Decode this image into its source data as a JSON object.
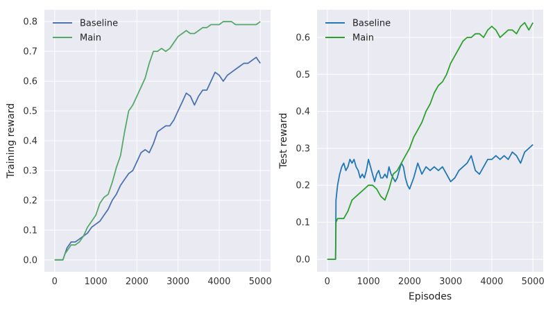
{
  "chart_data": [
    {
      "type": "line",
      "title": "",
      "xlabel": "",
      "ylabel": "Training reward",
      "xlim": [
        -250,
        5250
      ],
      "ylim": [
        -0.04,
        0.84
      ],
      "xticks": [
        0,
        1000,
        2000,
        3000,
        4000,
        5000
      ],
      "yticks": [
        "0.0",
        "0.1",
        "0.2",
        "0.3",
        "0.4",
        "0.5",
        "0.6",
        "0.7",
        "0.8"
      ],
      "grid": true,
      "legend_position": "top-left",
      "series": [
        {
          "name": "Baseline",
          "color": "#4c72b0",
          "x": [
            0,
            200,
            250,
            300,
            400,
            500,
            600,
            700,
            800,
            900,
            1000,
            1100,
            1200,
            1300,
            1400,
            1500,
            1600,
            1700,
            1800,
            1900,
            2000,
            2100,
            2200,
            2300,
            2400,
            2500,
            2600,
            2700,
            2800,
            2900,
            3000,
            3100,
            3200,
            3300,
            3400,
            3500,
            3600,
            3700,
            3800,
            3900,
            4000,
            4100,
            4200,
            4300,
            4400,
            4500,
            4600,
            4700,
            4800,
            4900,
            5000
          ],
          "y": [
            0.0,
            0.0,
            0.02,
            0.04,
            0.06,
            0.06,
            0.07,
            0.08,
            0.09,
            0.11,
            0.12,
            0.13,
            0.15,
            0.17,
            0.2,
            0.22,
            0.25,
            0.27,
            0.29,
            0.3,
            0.33,
            0.36,
            0.37,
            0.36,
            0.39,
            0.43,
            0.44,
            0.45,
            0.45,
            0.47,
            0.5,
            0.53,
            0.56,
            0.55,
            0.52,
            0.55,
            0.57,
            0.57,
            0.6,
            0.63,
            0.62,
            0.6,
            0.62,
            0.63,
            0.64,
            0.65,
            0.66,
            0.66,
            0.67,
            0.68,
            0.66
          ]
        },
        {
          "name": "Main",
          "color": "#55a868",
          "x": [
            0,
            200,
            250,
            300,
            400,
            500,
            600,
            700,
            800,
            900,
            1000,
            1100,
            1200,
            1300,
            1400,
            1500,
            1600,
            1700,
            1800,
            1900,
            2000,
            2100,
            2200,
            2300,
            2400,
            2500,
            2600,
            2700,
            2800,
            2900,
            3000,
            3100,
            3200,
            3300,
            3400,
            3500,
            3600,
            3700,
            3800,
            3900,
            4000,
            4100,
            4200,
            4300,
            4400,
            4500,
            4600,
            4700,
            4800,
            4900,
            5000
          ],
          "y": [
            0.0,
            0.0,
            0.02,
            0.03,
            0.05,
            0.05,
            0.06,
            0.08,
            0.11,
            0.13,
            0.15,
            0.19,
            0.21,
            0.22,
            0.26,
            0.31,
            0.35,
            0.43,
            0.5,
            0.52,
            0.55,
            0.58,
            0.61,
            0.66,
            0.7,
            0.7,
            0.71,
            0.7,
            0.71,
            0.73,
            0.75,
            0.76,
            0.77,
            0.76,
            0.76,
            0.77,
            0.78,
            0.78,
            0.79,
            0.79,
            0.79,
            0.8,
            0.8,
            0.8,
            0.79,
            0.79,
            0.79,
            0.79,
            0.79,
            0.79,
            0.8
          ]
        }
      ]
    },
    {
      "type": "line",
      "title": "",
      "xlabel": "Episodes",
      "ylabel": "Test reward",
      "xlim": [
        -250,
        5250
      ],
      "ylim": [
        -0.034,
        0.675
      ],
      "xticks": [
        0,
        1000,
        2000,
        3000,
        4000,
        5000
      ],
      "yticks": [
        "0.0",
        "0.1",
        "0.2",
        "0.3",
        "0.4",
        "0.5",
        "0.6"
      ],
      "grid": true,
      "legend_position": "top-left",
      "series": [
        {
          "name": "Baseline",
          "color": "#1f77b4",
          "x": [
            0,
            200,
            210,
            250,
            300,
            350,
            400,
            450,
            500,
            550,
            600,
            650,
            700,
            750,
            800,
            850,
            900,
            950,
            1000,
            1050,
            1100,
            1150,
            1200,
            1250,
            1300,
            1350,
            1400,
            1450,
            1500,
            1550,
            1600,
            1650,
            1700,
            1750,
            1800,
            1850,
            1900,
            1950,
            2000,
            2100,
            2200,
            2300,
            2400,
            2500,
            2600,
            2700,
            2800,
            2900,
            3000,
            3100,
            3200,
            3300,
            3400,
            3500,
            3600,
            3700,
            3800,
            3900,
            4000,
            4100,
            4200,
            4300,
            4400,
            4500,
            4600,
            4700,
            4800,
            4900,
            5000
          ],
          "y": [
            0.0,
            0.0,
            0.16,
            0.2,
            0.23,
            0.25,
            0.26,
            0.24,
            0.25,
            0.27,
            0.26,
            0.27,
            0.25,
            0.24,
            0.22,
            0.23,
            0.22,
            0.24,
            0.27,
            0.25,
            0.23,
            0.21,
            0.23,
            0.24,
            0.22,
            0.22,
            0.23,
            0.22,
            0.25,
            0.23,
            0.22,
            0.21,
            0.22,
            0.24,
            0.26,
            0.25,
            0.22,
            0.2,
            0.19,
            0.22,
            0.26,
            0.23,
            0.25,
            0.24,
            0.25,
            0.24,
            0.25,
            0.23,
            0.21,
            0.22,
            0.24,
            0.25,
            0.26,
            0.28,
            0.24,
            0.23,
            0.25,
            0.27,
            0.27,
            0.28,
            0.27,
            0.28,
            0.27,
            0.29,
            0.28,
            0.26,
            0.29,
            0.3,
            0.31
          ]
        },
        {
          "name": "Main",
          "color": "#2ca02c",
          "x": [
            0,
            200,
            210,
            250,
            300,
            400,
            500,
            600,
            700,
            800,
            900,
            1000,
            1100,
            1200,
            1300,
            1400,
            1500,
            1600,
            1700,
            1800,
            1900,
            2000,
            2100,
            2200,
            2300,
            2400,
            2500,
            2600,
            2700,
            2800,
            2900,
            3000,
            3100,
            3200,
            3300,
            3400,
            3500,
            3600,
            3700,
            3800,
            3900,
            4000,
            4100,
            4200,
            4300,
            4400,
            4500,
            4600,
            4700,
            4800,
            4900,
            5000
          ],
          "y": [
            0.0,
            0.0,
            0.1,
            0.11,
            0.11,
            0.11,
            0.13,
            0.16,
            0.17,
            0.18,
            0.19,
            0.2,
            0.2,
            0.19,
            0.17,
            0.16,
            0.19,
            0.23,
            0.24,
            0.26,
            0.28,
            0.3,
            0.33,
            0.35,
            0.37,
            0.4,
            0.42,
            0.45,
            0.47,
            0.48,
            0.5,
            0.53,
            0.55,
            0.57,
            0.59,
            0.6,
            0.6,
            0.61,
            0.61,
            0.6,
            0.62,
            0.63,
            0.62,
            0.6,
            0.61,
            0.62,
            0.62,
            0.61,
            0.63,
            0.64,
            0.62,
            0.64
          ]
        }
      ]
    }
  ]
}
